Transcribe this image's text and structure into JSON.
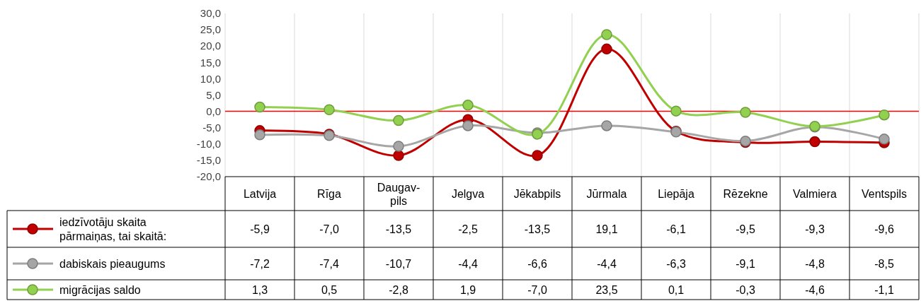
{
  "chart_data": {
    "type": "line",
    "categories": [
      "Latvija",
      "Rīga",
      "Daugav-pils",
      "Jelgva",
      "Jēkabpils",
      "Jūrmala",
      "Liepāja",
      "Rēzekne",
      "Valmiera",
      "Ventspils"
    ],
    "series": [
      {
        "name": "iedzīvotāju skaita pārmaiņas, tai skaitā:",
        "color": "#c00000",
        "values": [
          -5.9,
          -7.0,
          -13.5,
          -2.5,
          -13.5,
          19.1,
          -6.1,
          -9.5,
          -9.3,
          -9.6
        ],
        "value_labels": [
          "-5,9",
          "-7,0",
          "-13,5",
          "-2,5",
          "-13,5",
          "19,1",
          "-6,1",
          "-9,5",
          "-9,3",
          "-9,6"
        ]
      },
      {
        "name": "dabiskais pieaugums",
        "color": "#a6a6a6",
        "values": [
          -7.2,
          -7.4,
          -10.7,
          -4.4,
          -6.6,
          -4.4,
          -6.3,
          -9.1,
          -4.8,
          -8.5
        ],
        "value_labels": [
          "-7,2",
          "-7,4",
          "-10,7",
          "-4,4",
          "-6,6",
          "-4,4",
          "-6,3",
          "-9,1",
          "-4,8",
          "-8,5"
        ]
      },
      {
        "name": "migrācijas saldo",
        "color": "#92d050",
        "values": [
          1.3,
          0.5,
          -2.8,
          1.9,
          -7.0,
          23.5,
          0.1,
          -0.3,
          -4.6,
          -1.1
        ],
        "value_labels": [
          "1,3",
          "0,5",
          "-2,8",
          "1,9",
          "-7,0",
          "23,5",
          "0,1",
          "-0,3",
          "-4,6",
          "-1,1"
        ]
      }
    ],
    "ylim": [
      -20,
      30
    ],
    "yticks": [
      {
        "value": -20,
        "label": "-20,0"
      },
      {
        "value": -15,
        "label": "-15,0"
      },
      {
        "value": -10,
        "label": "-10,0"
      },
      {
        "value": -5,
        "label": "-5,0"
      },
      {
        "value": 0,
        "label": "0,0"
      },
      {
        "value": 5,
        "label": "5,0"
      },
      {
        "value": 10,
        "label": "10,0"
      },
      {
        "value": 15,
        "label": "15,0"
      },
      {
        "value": 20,
        "label": "20,0"
      },
      {
        "value": 25,
        "label": "25,0"
      },
      {
        "value": 30,
        "label": "30,0"
      }
    ],
    "ref_lines": [
      {
        "axis": "y",
        "value": 0,
        "color": "#ff0000"
      }
    ],
    "grid": "x",
    "marker": "circle",
    "line_style": "solid",
    "legend": "bottom left"
  }
}
